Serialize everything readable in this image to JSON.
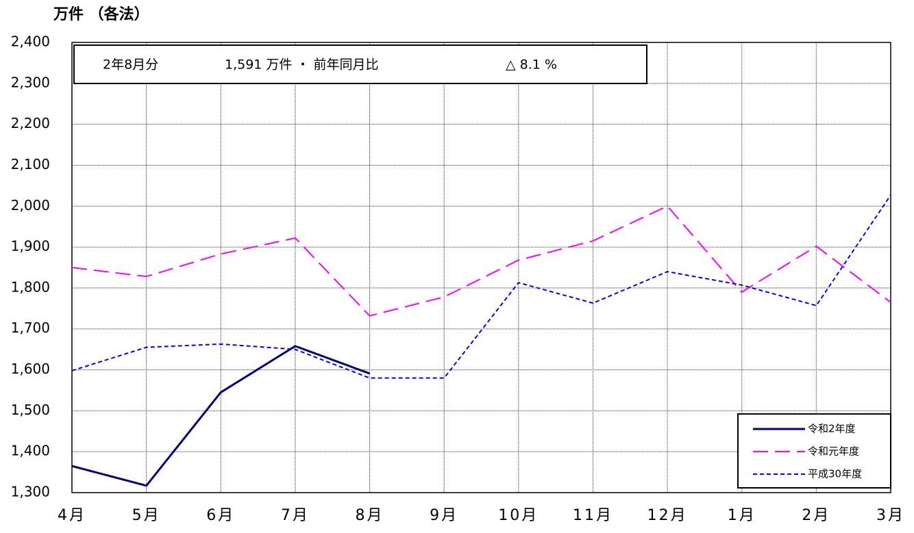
{
  "chart_data": {
    "type": "line",
    "y_label": "万件 （各法）",
    "annotation": [
      "2年8月分",
      "1,591 万件 ・ 前年同月比",
      "△ 8.1 %"
    ],
    "categories": [
      "4月",
      "5月",
      "6月",
      "7月",
      "8月",
      "9月",
      "10月",
      "11月",
      "12月",
      "1月",
      "2月",
      "3月"
    ],
    "series": [
      {
        "name": "令和2年度",
        "color": "#000080",
        "dash": "",
        "width": 3,
        "values": [
          1365,
          1317,
          1545,
          1658,
          1591,
          null,
          null,
          null,
          null,
          null,
          null,
          null
        ]
      },
      {
        "name": "令和元年度",
        "color": "#ff00ff",
        "dash": "22 10",
        "width": 2,
        "values": [
          1850,
          1828,
          1883,
          1922,
          1732,
          1778,
          1868,
          1915,
          2000,
          1790,
          1902,
          1765
        ]
      },
      {
        "name": "平成30年度",
        "color": "#0000ff",
        "dash": "6 4",
        "width": 2,
        "values": [
          1598,
          1655,
          1663,
          1650,
          1580,
          1580,
          1813,
          1763,
          1840,
          1807,
          1757,
          2027
        ]
      }
    ],
    "ylim": [
      1300,
      2400
    ],
    "yticks": [
      {
        "value": 1300,
        "label": "1,300"
      },
      {
        "value": 1400,
        "label": "1,400"
      },
      {
        "value": 1500,
        "label": "1,500"
      },
      {
        "value": 1600,
        "label": "1,600"
      },
      {
        "value": 1700,
        "label": "1,700"
      },
      {
        "value": 1800,
        "label": "1,800"
      },
      {
        "value": 1900,
        "label": "1,900"
      },
      {
        "value": 2000,
        "label": "2,000"
      },
      {
        "value": 2100,
        "label": "2,100"
      },
      {
        "value": 2200,
        "label": "2,200"
      },
      {
        "value": 2300,
        "label": "2,300"
      },
      {
        "value": 2400,
        "label": "2,400"
      }
    ],
    "grid": true,
    "legend": "lower-right"
  }
}
